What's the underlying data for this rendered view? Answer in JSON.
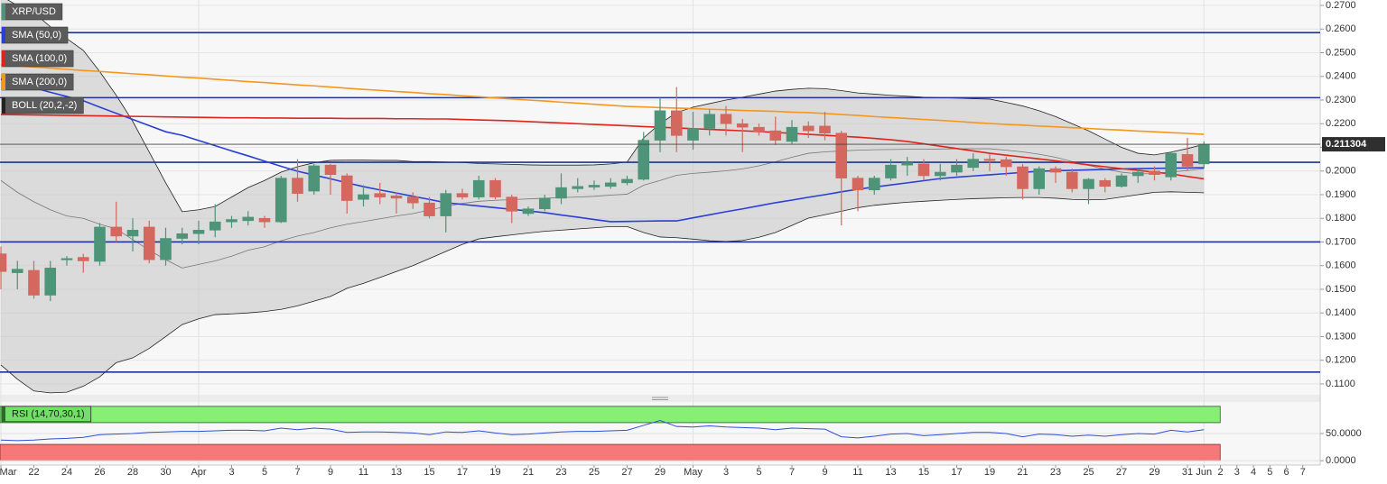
{
  "chart_data": [
    {
      "type": "candlestick",
      "title": "XRP/USD",
      "categories": [
        "Mar",
        null,
        "22",
        null,
        "24",
        null,
        "26",
        null,
        "28",
        null,
        "30",
        null,
        "Apr",
        null,
        "3",
        null,
        "5",
        null,
        "7",
        null,
        "9",
        null,
        "11",
        null,
        "13",
        null,
        "15",
        null,
        "17",
        null,
        "19",
        null,
        "21",
        null,
        "23",
        null,
        "25",
        null,
        "27",
        null,
        "29",
        null,
        "May",
        null,
        "3",
        null,
        "5",
        null,
        "7",
        null,
        "9",
        null,
        "11",
        null,
        "13",
        null,
        "15",
        null,
        "17",
        null,
        "19",
        null,
        "21",
        null,
        "23",
        null,
        "25",
        null,
        "27",
        null,
        "29",
        null,
        "31",
        "Jun",
        "2",
        "3",
        "4",
        "5",
        "6",
        "7"
      ],
      "open": [
        0.165,
        0.157,
        0.158,
        0.1475,
        0.1625,
        0.1635,
        0.1618,
        0.1763,
        0.1725,
        0.1763,
        0.1625,
        0.1715,
        0.1735,
        0.175,
        0.1785,
        0.179,
        0.18,
        0.1785,
        0.197,
        0.1915,
        0.2025,
        0.198,
        0.188,
        0.1905,
        0.1895,
        0.189,
        0.1865,
        0.181,
        0.1905,
        0.189,
        0.196,
        0.189,
        0.182,
        0.184,
        0.1885,
        0.1925,
        0.1932,
        0.1935,
        0.195,
        0.1965,
        0.213,
        0.2255,
        0.213,
        0.218,
        0.224,
        0.22,
        0.2185,
        0.217,
        0.2125,
        0.219,
        0.219,
        0.216,
        0.197,
        0.192,
        0.197,
        0.2025,
        0.203,
        0.198,
        0.1995,
        0.2015,
        0.205,
        0.2048,
        0.2018,
        0.1925,
        0.201,
        0.1995,
        0.1925,
        0.196,
        0.1935,
        0.198,
        0.2,
        0.1975,
        0.207,
        0.203,
        null,
        null,
        null,
        null,
        null,
        null
      ],
      "high": [
        0.168,
        0.162,
        0.162,
        0.162,
        0.164,
        0.165,
        0.178,
        0.187,
        0.18,
        0.179,
        0.176,
        0.176,
        0.179,
        0.186,
        0.181,
        0.183,
        0.181,
        0.198,
        0.205,
        0.203,
        0.203,
        0.199,
        0.194,
        0.195,
        0.191,
        0.191,
        0.189,
        0.192,
        0.1925,
        0.198,
        0.197,
        0.19,
        0.185,
        0.19,
        0.199,
        0.197,
        0.196,
        0.197,
        0.198,
        0.2165,
        0.231,
        0.2355,
        0.225,
        0.226,
        0.2275,
        0.222,
        0.22,
        0.223,
        0.2215,
        0.221,
        0.225,
        0.217,
        0.198,
        0.198,
        0.205,
        0.206,
        0.205,
        0.203,
        0.205,
        0.2075,
        0.207,
        0.206,
        0.203,
        0.202,
        0.202,
        0.201,
        0.197,
        0.197,
        0.199,
        0.201,
        0.202,
        0.208,
        0.214,
        0.2125,
        null,
        null,
        null,
        null,
        null,
        null
      ],
      "low": [
        0.15,
        0.15,
        0.146,
        0.145,
        0.16,
        0.157,
        0.16,
        0.17,
        0.166,
        0.161,
        0.16,
        0.169,
        0.169,
        0.172,
        0.176,
        0.177,
        0.176,
        0.178,
        0.187,
        0.19,
        0.19,
        0.182,
        0.185,
        0.186,
        0.182,
        0.184,
        0.18,
        0.174,
        0.188,
        0.188,
        0.188,
        0.178,
        0.181,
        0.183,
        0.186,
        0.191,
        0.192,
        0.1925,
        0.194,
        0.196,
        0.208,
        0.208,
        0.209,
        0.215,
        0.215,
        0.208,
        0.215,
        0.211,
        0.2115,
        0.214,
        0.213,
        0.177,
        0.183,
        0.19,
        0.196,
        0.198,
        0.196,
        0.196,
        0.198,
        0.2,
        0.2,
        0.198,
        0.188,
        0.19,
        0.195,
        0.191,
        0.186,
        0.191,
        0.193,
        0.195,
        0.196,
        0.196,
        0.2,
        0.201,
        null,
        null,
        null,
        null,
        null,
        null
      ],
      "close": [
        0.1575,
        0.1585,
        0.1475,
        0.159,
        0.163,
        0.162,
        0.1763,
        0.1725,
        0.175,
        0.1625,
        0.1715,
        0.1735,
        0.175,
        0.1785,
        0.1795,
        0.1805,
        0.1785,
        0.197,
        0.1905,
        0.2022,
        0.1985,
        0.1875,
        0.19,
        0.189,
        0.1885,
        0.1865,
        0.181,
        0.1905,
        0.189,
        0.196,
        0.189,
        0.183,
        0.184,
        0.1885,
        0.193,
        0.1935,
        0.194,
        0.195,
        0.1965,
        0.213,
        0.2255,
        0.215,
        0.218,
        0.224,
        0.22,
        0.2185,
        0.2165,
        0.213,
        0.2185,
        0.217,
        0.216,
        0.197,
        0.192,
        0.197,
        0.2025,
        0.2035,
        0.198,
        0.1995,
        0.2025,
        0.205,
        0.2045,
        0.2018,
        0.1925,
        0.201,
        0.1995,
        0.1925,
        0.1965,
        0.1935,
        0.198,
        0.1995,
        0.1985,
        0.2075,
        0.202,
        0.2113,
        null,
        null,
        null,
        null,
        null,
        null
      ],
      "up_color": "#4d9478",
      "down_color": "#d4675e",
      "series": [
        {
          "name": "SMA (50,0)",
          "color": "#2a3fd6",
          "values": [
            0.2388,
            0.237,
            0.2352,
            0.2333,
            0.2315,
            0.2297,
            0.227,
            0.2244,
            0.2218,
            0.2192,
            0.2166,
            0.2151,
            0.2129,
            0.2107,
            0.2085,
            0.2064,
            0.2042,
            0.202,
            0.1999,
            0.1983,
            0.1967,
            0.195,
            0.1934,
            0.192,
            0.1907,
            0.1893,
            0.188,
            0.1866,
            0.1859,
            0.1852,
            0.1845,
            0.1838,
            0.1831,
            0.1824,
            0.1814,
            0.1805,
            0.1795,
            0.1786,
            0.1787,
            0.1788,
            0.1789,
            0.1789,
            0.1802,
            0.1815,
            0.1828,
            0.184,
            0.1853,
            0.1866,
            0.1877,
            0.1889,
            0.19,
            0.1912,
            0.1923,
            0.1932,
            0.1941,
            0.195,
            0.1959,
            0.1968,
            0.1974,
            0.1979,
            0.1984,
            0.1989,
            0.1994,
            0.1999,
            0.2001,
            0.2003,
            0.2005,
            0.2007,
            0.2009,
            0.201,
            0.2011,
            0.2012,
            0.2013,
            0.2014,
            null,
            null,
            null,
            null,
            null,
            null
          ]
        },
        {
          "name": "SMA (100,0)",
          "color": "#e0231c",
          "values": [
            0.2239,
            0.2238,
            0.2237,
            0.2236,
            0.2235,
            0.2234,
            0.2233,
            0.2232,
            0.2231,
            0.223,
            0.2229,
            0.2228,
            0.2227,
            0.2226,
            0.2225,
            0.2225,
            0.2224,
            0.2224,
            0.2223,
            0.2223,
            0.2223,
            0.2222,
            0.2222,
            0.2222,
            0.2221,
            0.2221,
            0.222,
            0.222,
            0.2218,
            0.2216,
            0.2214,
            0.2212,
            0.2209,
            0.2206,
            0.2203,
            0.22,
            0.2197,
            0.2194,
            0.2191,
            0.2188,
            0.2185,
            0.2182,
            0.2179,
            0.2176,
            0.2173,
            0.217,
            0.2167,
            0.2163,
            0.2159,
            0.2155,
            0.2151,
            0.2147,
            0.2143,
            0.2138,
            0.2132,
            0.2125,
            0.2115,
            0.2105,
            0.2095,
            0.2085,
            0.2075,
            0.2067,
            0.2059,
            0.2051,
            0.2043,
            0.2035,
            0.2026,
            0.2018,
            0.201,
            0.2003,
            0.1995,
            0.1988,
            0.1977,
            0.1967,
            null,
            null,
            null,
            null,
            null,
            null
          ]
        },
        {
          "name": "SMA (200,0)",
          "color": "#f5961e",
          "values": [
            0.2449,
            0.2444,
            0.244,
            0.2435,
            0.243,
            0.2425,
            0.2421,
            0.2416,
            0.2411,
            0.2407,
            0.2402,
            0.2397,
            0.2393,
            0.2388,
            0.2383,
            0.2378,
            0.2374,
            0.2369,
            0.2364,
            0.236,
            0.2355,
            0.235,
            0.2345,
            0.2341,
            0.2336,
            0.2332,
            0.2327,
            0.2323,
            0.2318,
            0.2314,
            0.2309,
            0.2305,
            0.23,
            0.2296,
            0.2291,
            0.2287,
            0.2282,
            0.2278,
            0.2273,
            0.2271,
            0.2268,
            0.2266,
            0.2264,
            0.2261,
            0.2259,
            0.2256,
            0.2254,
            0.2252,
            0.2249,
            0.2247,
            0.2243,
            0.2239,
            0.2235,
            0.223,
            0.2226,
            0.2222,
            0.2218,
            0.2214,
            0.221,
            0.2205,
            0.2201,
            0.2197,
            0.2194,
            0.219,
            0.2187,
            0.2183,
            0.218,
            0.2176,
            0.2173,
            0.2169,
            0.2166,
            0.2162,
            0.2159,
            0.2155,
            null,
            null,
            null,
            null,
            null,
            null
          ]
        }
      ],
      "bands": {
        "name": "BOLL (20,2,-2)",
        "color": "#222222",
        "fill": "#c4c4c4",
        "upper": [
          0.274,
          0.27,
          0.267,
          0.261,
          0.256,
          0.251,
          0.242,
          0.232,
          0.221,
          0.208,
          0.195,
          0.1828,
          0.1836,
          0.185,
          0.189,
          0.193,
          0.196,
          0.1995,
          0.2018,
          0.2035,
          0.2045,
          0.2046,
          0.2046,
          0.2045,
          0.2045,
          0.204,
          0.204,
          0.2038,
          0.2036,
          0.2032,
          0.203,
          0.2028,
          0.2026,
          0.2025,
          0.2025,
          0.2025,
          0.2026,
          0.203,
          0.2038,
          0.214,
          0.22,
          0.2247,
          0.227,
          0.2285,
          0.23,
          0.2312,
          0.2325,
          0.2338,
          0.2345,
          0.235,
          0.2348,
          0.234,
          0.233,
          0.2325,
          0.232,
          0.2316,
          0.2312,
          0.231,
          0.2308,
          0.2306,
          0.2304,
          0.229,
          0.2275,
          0.2255,
          0.223,
          0.22,
          0.217,
          0.2135,
          0.21,
          0.2075,
          0.2068,
          0.208,
          0.2095,
          0.2113,
          null,
          null,
          null,
          null,
          null,
          null
        ],
        "middle": [
          0.196,
          0.191,
          0.187,
          0.1836,
          0.181,
          0.18,
          0.1775,
          0.1755,
          0.171,
          0.1665,
          0.1625,
          0.159,
          0.1605,
          0.162,
          0.164,
          0.1665,
          0.168,
          0.1705,
          0.1725,
          0.174,
          0.176,
          0.1775,
          0.1786,
          0.1798,
          0.181,
          0.182,
          0.1835,
          0.185,
          0.1863,
          0.1872,
          0.1876,
          0.1879,
          0.1882,
          0.1885,
          0.1888,
          0.189,
          0.1893,
          0.1898,
          0.1902,
          0.194,
          0.196,
          0.1982,
          0.199,
          0.1995,
          0.2001,
          0.2009,
          0.2022,
          0.2039,
          0.2058,
          0.2075,
          0.2081,
          0.2085,
          0.2088,
          0.209,
          0.2091,
          0.2092,
          0.2092,
          0.2093,
          0.2094,
          0.2094,
          0.2094,
          0.2088,
          0.2081,
          0.2071,
          0.2058,
          0.204,
          0.2024,
          0.2008,
          0.1995,
          0.1988,
          0.1989,
          0.1996,
          0.2002,
          0.201,
          null,
          null,
          null,
          null,
          null,
          null
        ],
        "lower": [
          0.118,
          0.112,
          0.107,
          0.1062,
          0.1065,
          0.109,
          0.113,
          0.119,
          0.121,
          0.125,
          0.13,
          0.1351,
          0.1375,
          0.1393,
          0.1396,
          0.14,
          0.1406,
          0.1415,
          0.143,
          0.145,
          0.147,
          0.1504,
          0.1525,
          0.155,
          0.1575,
          0.16,
          0.163,
          0.166,
          0.169,
          0.1713,
          0.1722,
          0.173,
          0.1738,
          0.1745,
          0.175,
          0.1755,
          0.176,
          0.1765,
          0.1765,
          0.174,
          0.1721,
          0.1718,
          0.1712,
          0.1705,
          0.1702,
          0.1706,
          0.172,
          0.174,
          0.177,
          0.1801,
          0.1815,
          0.183,
          0.1845,
          0.1855,
          0.1862,
          0.1868,
          0.1872,
          0.1876,
          0.188,
          0.1883,
          0.1885,
          0.1887,
          0.1888,
          0.1888,
          0.1885,
          0.188,
          0.1878,
          0.188,
          0.189,
          0.19,
          0.191,
          0.1912,
          0.191,
          0.1908,
          null,
          null,
          null,
          null,
          null,
          null
        ]
      },
      "levels": [
        0.2585,
        0.231,
        0.2037,
        0.17,
        0.115
      ],
      "level_color": "#1b3590",
      "last_price": 0.211304,
      "ylim": [
        0.1054,
        0.2723
      ],
      "yticks": [
        {
          "value": 0.27,
          "label": "0.2700"
        },
        {
          "value": 0.26,
          "label": "0.2600"
        },
        {
          "value": 0.25,
          "label": "0.2500"
        },
        {
          "value": 0.24,
          "label": "0.2400"
        },
        {
          "value": 0.23,
          "label": "0.2300"
        },
        {
          "value": 0.22,
          "label": "0.2200"
        },
        {
          "value": 0.21,
          "label": "0.2100"
        },
        {
          "value": 0.2,
          "label": "0.2000"
        },
        {
          "value": 0.19,
          "label": "0.1900"
        },
        {
          "value": 0.18,
          "label": "0.1800"
        },
        {
          "value": 0.17,
          "label": "0.1700"
        },
        {
          "value": 0.16,
          "label": "0.1600"
        },
        {
          "value": 0.15,
          "label": "0.1500"
        },
        {
          "value": 0.14,
          "label": "0.1400"
        },
        {
          "value": 0.13,
          "label": "0.1300"
        },
        {
          "value": 0.12,
          "label": "0.1200"
        },
        {
          "value": 0.11,
          "label": "0.1100"
        }
      ],
      "grid": true
    },
    {
      "type": "line",
      "title": "RSI (14,70,30,1)",
      "color": "#2f4fd8",
      "values": [
        38,
        37,
        38,
        40,
        41,
        43,
        48,
        49,
        50,
        52,
        53,
        54,
        54,
        55,
        56,
        56,
        55,
        60,
        57,
        60,
        58,
        52,
        53,
        53,
        52,
        51,
        48,
        53,
        52,
        55,
        51,
        48,
        49,
        51,
        53,
        54,
        54,
        55,
        56,
        65,
        74,
        63,
        62,
        64,
        62,
        61,
        60,
        57,
        60,
        59,
        58,
        44,
        42,
        45,
        49,
        50,
        46,
        48,
        50,
        52,
        52,
        50,
        44,
        49,
        48,
        45,
        47,
        45,
        48,
        50,
        49,
        56,
        53,
        57,
        null,
        null,
        null,
        null,
        null,
        null
      ],
      "overbought": [
        70,
        100
      ],
      "overbought_color": "#86ef74",
      "oversold": [
        0,
        30
      ],
      "oversold_color": "#f77878",
      "ylim": [
        -8,
        108
      ],
      "yticks": [
        {
          "value": 50,
          "label": "50.0000"
        },
        {
          "value": 0,
          "label": "0.0000"
        }
      ]
    }
  ]
}
